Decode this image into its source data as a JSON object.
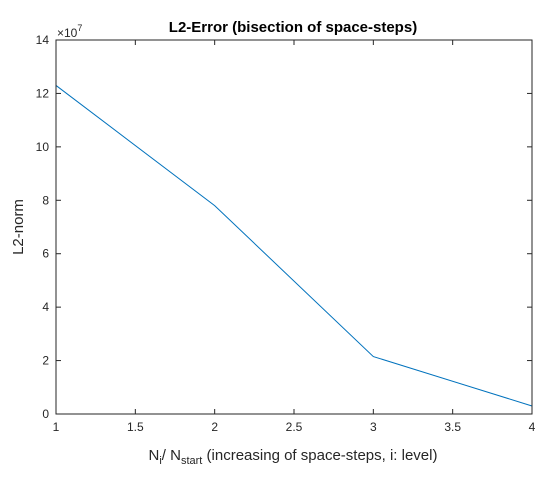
{
  "chart_data": {
    "type": "line",
    "title": "L2-Error (bisection of space-steps)",
    "xlabel": {
      "parts": [
        {
          "text": "N",
          "style": "normal"
        },
        {
          "text": "i",
          "style": "sub"
        },
        {
          "text": "/ N",
          "style": "normal"
        },
        {
          "text": "start",
          "style": "sub"
        },
        {
          "text": " (increasing of space-steps, i: level)",
          "style": "normal"
        }
      ]
    },
    "ylabel": "L2-norm",
    "y_exponent": {
      "base": "×10",
      "power": "7"
    },
    "xlim": [
      1,
      4
    ],
    "ylim": [
      0,
      14
    ],
    "x_ticks": [
      1,
      1.5,
      2,
      2.5,
      3,
      3.5,
      4
    ],
    "x_tick_labels": [
      "1",
      "1.5",
      "2",
      "2.5",
      "3",
      "3.5",
      "4"
    ],
    "y_ticks": [
      0,
      2,
      4,
      6,
      8,
      10,
      12,
      14
    ],
    "y_tick_labels": [
      "0",
      "2",
      "4",
      "6",
      "8",
      "10",
      "12",
      "14"
    ],
    "grid": false,
    "series": [
      {
        "color": "#0072BD",
        "x": [
          1,
          2,
          3,
          4
        ],
        "values": [
          12.3,
          7.8,
          2.15,
          0.3
        ]
      }
    ]
  }
}
